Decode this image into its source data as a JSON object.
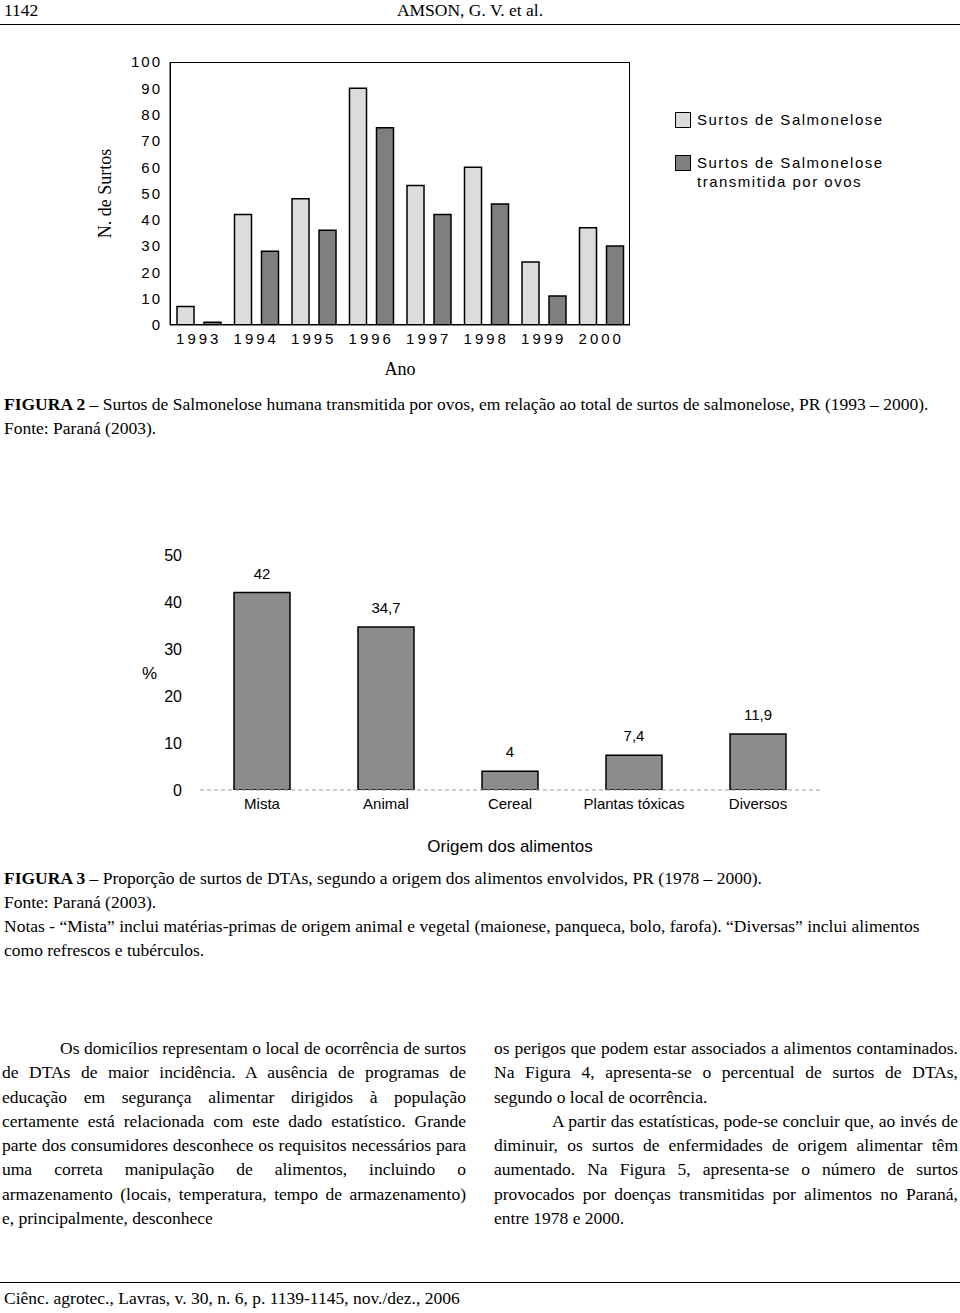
{
  "header": {
    "page": "1142",
    "running_title": "AMSON, G. V. et al."
  },
  "chart_data": [
    {
      "type": "bar",
      "x_label": "Ano",
      "y_label": "N. de Surtos",
      "categories": [
        "1993",
        "1994",
        "1995",
        "1996",
        "1997",
        "1998",
        "1999",
        "2000"
      ],
      "series": [
        {
          "name": "Surtos de Salmonelose",
          "color": "#dcdcdc",
          "values": [
            7,
            42,
            48,
            90,
            53,
            60,
            24,
            37
          ]
        },
        {
          "name": "Surtos de Salmonelose transmitida por ovos",
          "color": "#7f7f7f",
          "values": [
            1,
            28,
            36,
            75,
            42,
            46,
            11,
            30
          ]
        }
      ],
      "ylim": [
        0,
        100
      ],
      "yticks": [
        0,
        10,
        20,
        30,
        40,
        50,
        60,
        70,
        80,
        90,
        100
      ],
      "legend": "right",
      "grid": false
    },
    {
      "type": "bar",
      "x_label": "Origem dos alimentos",
      "y_label": "%",
      "categories": [
        "Mista",
        "Animal",
        "Cereal",
        "Plantas tóxicas",
        "Diversos"
      ],
      "values": [
        42,
        34.7,
        4,
        7.4,
        11.9
      ],
      "value_labels": [
        "42",
        "34,7",
        "4",
        "7,4",
        "11,9"
      ],
      "color": "#8c8c8c",
      "ylim": [
        0,
        50
      ],
      "yticks": [
        0,
        10,
        20,
        30,
        40,
        50
      ],
      "data_labels": true,
      "grid": false
    }
  ],
  "figures": [
    {
      "label": "FIGURA 2",
      "caption": "– Surtos de Salmonelose humana transmitida por ovos, em relação ao total de surtos de salmonelose, PR (1993 – 2000).",
      "source": "Fonte: Paraná (2003)."
    },
    {
      "label": "FIGURA 3",
      "caption": "– Proporção de surtos de DTAs, segundo a origem dos alimentos envolvidos, PR (1978 – 2000).",
      "source": "Fonte: Paraná (2003).",
      "notes": "Notas - “Mista” inclui matérias-primas de origem animal e vegetal (maionese, panqueca, bolo, farofa). “Diversas” inclui alimentos como refrescos e tubérculos."
    }
  ],
  "body": {
    "columns": [
      [
        "Os domicílios representam o local de ocorrência de surtos de DTAs de maior incidência. A ausência de programas de educação em segurança alimentar dirigidos à população certamente está relacionada com este dado estatístico. Grande parte dos consumidores desconhece os requisitos necessários para uma correta manipulação de alimentos, incluindo o armazenamento (locais, temperatura, tempo de armazenamento) e, principalmente, desconhece"
      ],
      [
        "os perigos que podem estar associados a alimentos contaminados. Na Figura 4, apresenta-se o percentual de surtos de DTAs, segundo o local de ocorrência.",
        "A partir das estatísticas, pode-se concluir que, ao invés de diminuir, os surtos de enfermidades de origem alimentar têm aumentado. Na Figura 5, apresenta-se o número de surtos provocados por doenças transmitidas por alimentos no Paraná, entre 1978 e 2000."
      ]
    ]
  },
  "footer": "Ciênc. agrotec., Lavras, v. 30, n. 6, p. 1139-1145, nov./dez., 2006"
}
